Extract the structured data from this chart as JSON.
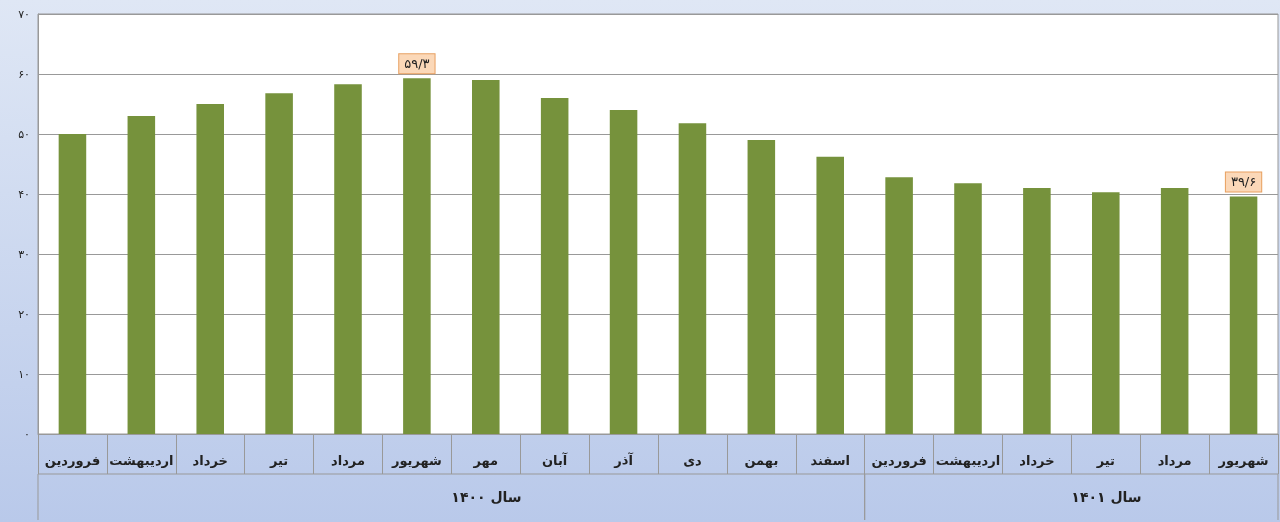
{
  "chart_data": {
    "type": "bar",
    "categories": [
      "فروردین",
      "اردیبهشت",
      "خرداد",
      "تیر",
      "مرداد",
      "شهریور",
      "مهر",
      "آبان",
      "آذر",
      "دی",
      "بهمن",
      "اسفند",
      "فروردین",
      "اردیبهشت",
      "خرداد",
      "تیر",
      "مرداد",
      "شهریور"
    ],
    "values": [
      50.0,
      53.0,
      55.0,
      56.8,
      58.3,
      59.3,
      59.0,
      56.0,
      54.0,
      51.8,
      49.0,
      46.2,
      42.8,
      41.8,
      41.0,
      40.3,
      41.0,
      39.6
    ],
    "value_labels": [
      null,
      null,
      null,
      null,
      null,
      "۵۹/۳",
      null,
      null,
      null,
      null,
      null,
      null,
      null,
      null,
      null,
      null,
      null,
      "۳۹/۶"
    ],
    "color": "#76923c",
    "ylim": [
      0,
      70
    ],
    "yticks": [
      {
        "value": 0,
        "label": "۰"
      },
      {
        "value": 10,
        "label": "۱۰"
      },
      {
        "value": 20,
        "label": "۲۰"
      },
      {
        "value": 30,
        "label": "۳۰"
      },
      {
        "value": 40,
        "label": "۴۰"
      },
      {
        "value": 50,
        "label": "۵۰"
      },
      {
        "value": 60,
        "label": "۶۰"
      },
      {
        "value": 70,
        "label": "۷۰"
      }
    ],
    "annotations": [
      "سال ۱۴۰۰",
      "سال ۱۴۰۱"
    ],
    "grid": "y"
  }
}
